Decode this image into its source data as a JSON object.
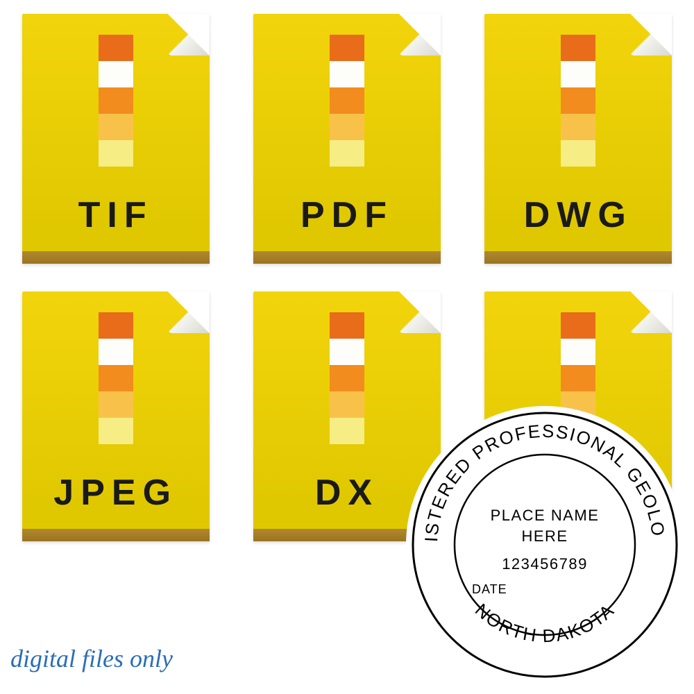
{
  "caption": "digital files only",
  "caption_color": "#2a6db8",
  "file_icons": [
    {
      "label": "TIF"
    },
    {
      "label": "PDF"
    },
    {
      "label": "DWG"
    },
    {
      "label": "JPEG"
    },
    {
      "label": "DX"
    },
    {
      "label": ""
    }
  ],
  "icon_style": {
    "body_gradient_top": "#f2d40c",
    "body_gradient_bottom": "#e0c800",
    "bottom_bar_top": "#b08830",
    "bottom_bar_bottom": "#9a7420",
    "corner_light": "#f5f5f0",
    "corner_dark": "#d8d8d0",
    "label_color": "#1a1a1a",
    "label_fontsize": 52,
    "color_strip": [
      "#e86c1a",
      "#fdfdfa",
      "#f28c1e",
      "#f8c24a",
      "#f6ed85"
    ],
    "strip_block_w": 50,
    "strip_block_h": 38
  },
  "seal": {
    "top_arc": "REGISTERED  PROFESSIONAL  GEOLOGIST",
    "bottom_arc": "NORTH DAKOTA",
    "name_line1": "PLACE NAME",
    "name_line2": "HERE",
    "number": "123456789",
    "date_label": "DATE",
    "outer_radius": 190,
    "inner_radius": 130,
    "stroke_color": "#000000",
    "background": "#ffffff"
  }
}
